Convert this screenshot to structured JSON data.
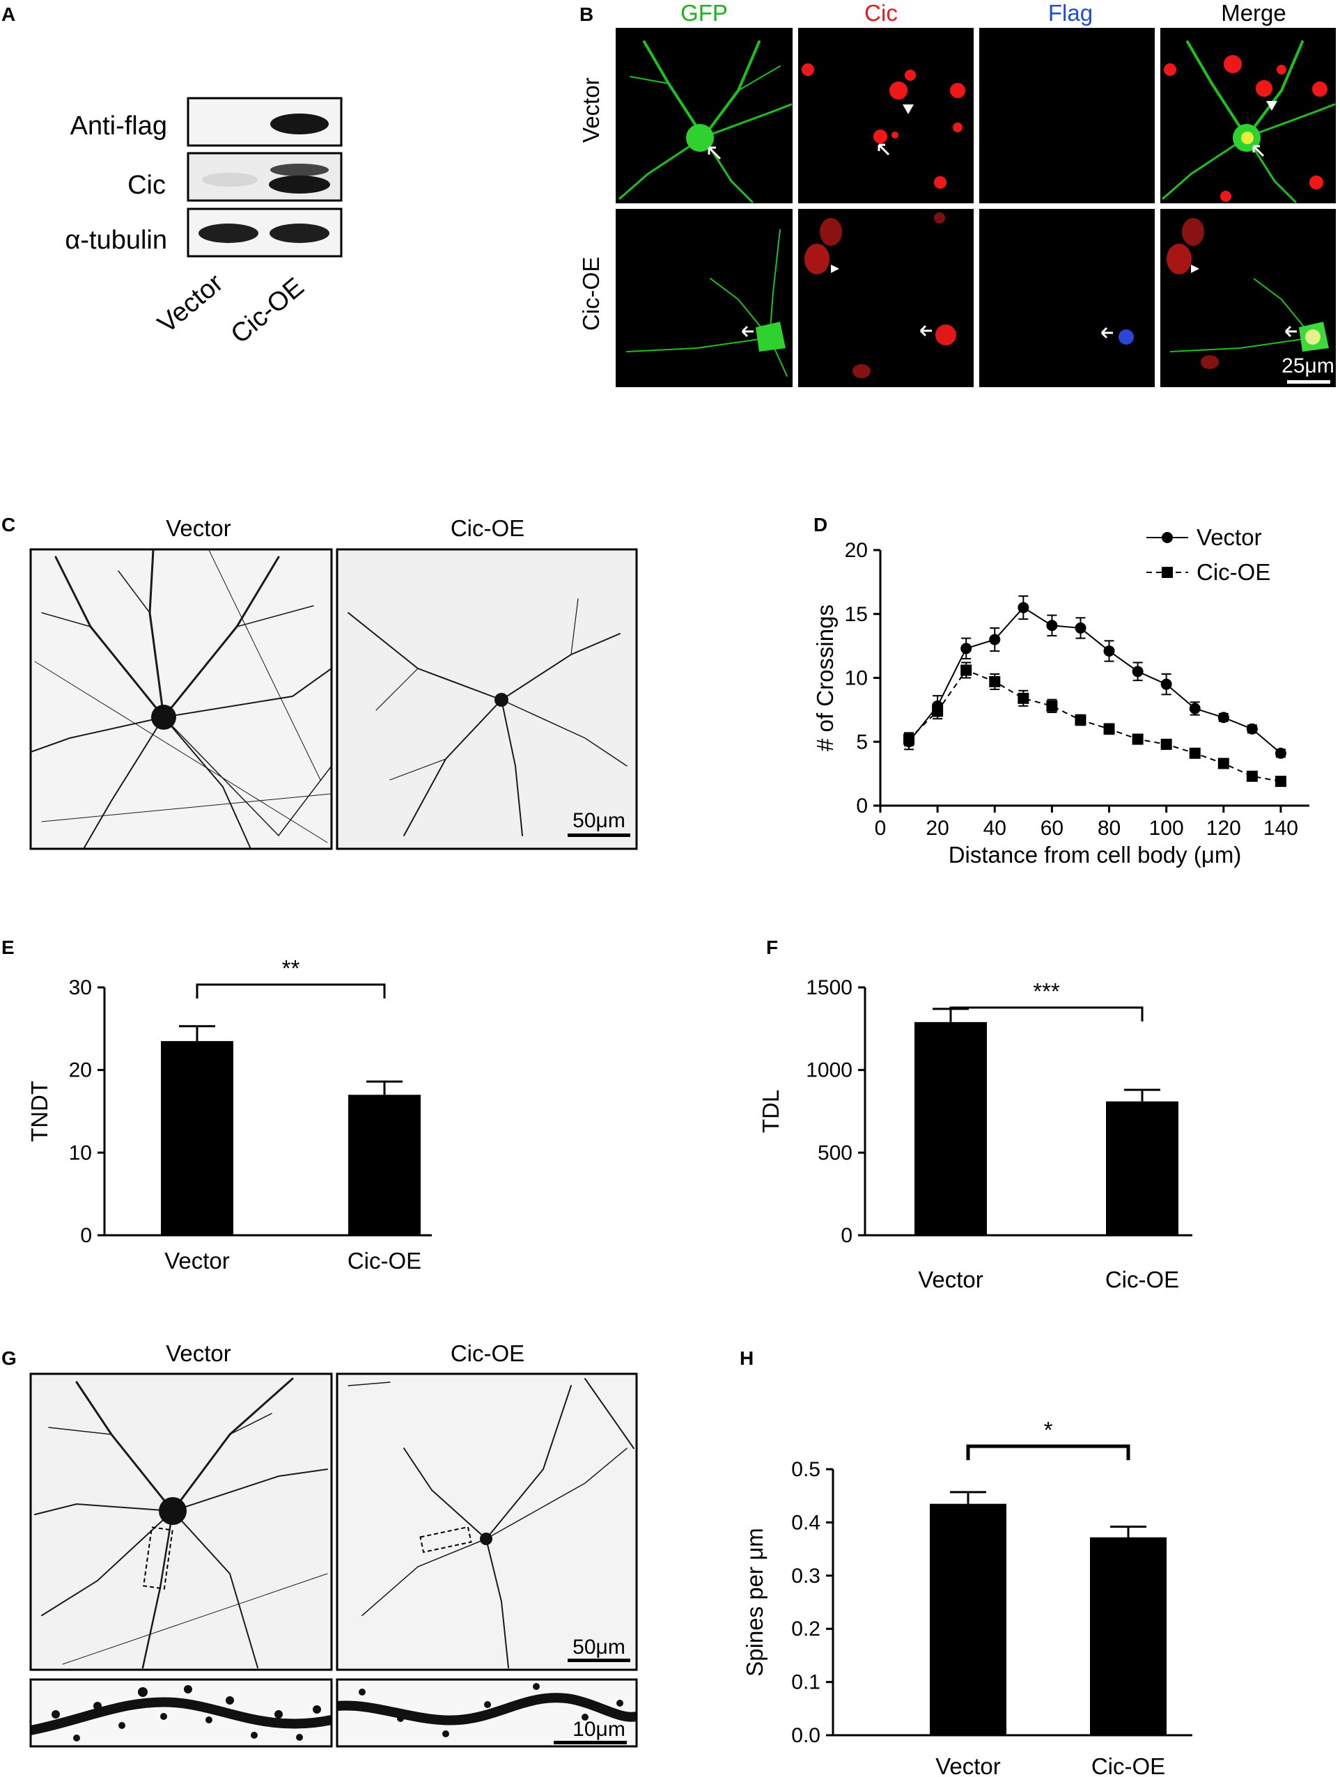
{
  "panels": {
    "A": {
      "label": "A",
      "rows": [
        "Anti-flag",
        "Cic",
        "α-tubulin"
      ],
      "lanes": [
        "Vector",
        "Cic-OE"
      ]
    },
    "B": {
      "label": "B",
      "columns": [
        {
          "name": "GFP",
          "color": "#1bb31b"
        },
        {
          "name": "Cic",
          "color": "#e01b1b"
        },
        {
          "name": "Flag",
          "color": "#1f4fd1"
        },
        {
          "name": "Merge",
          "color": "#000000"
        }
      ],
      "rows": [
        "Vector",
        "Cic-OE"
      ],
      "scalebar": "25μm"
    },
    "C": {
      "label": "C",
      "titles": [
        "Vector",
        "Cic-OE"
      ],
      "scalebar": "50μm"
    },
    "G": {
      "label": "G",
      "titles": [
        "Vector",
        "Cic-OE"
      ],
      "scalebar": "50μm",
      "scalebar_zoom": "10μm"
    }
  },
  "chart_data": [
    {
      "id": "D",
      "label": "D",
      "type": "line",
      "xlabel": "Distance from cell body (μm)",
      "ylabel": "# of Crossings",
      "xlim": [
        0,
        150
      ],
      "ylim": [
        0,
        20
      ],
      "xticks": [
        "0",
        "20",
        "40",
        "60",
        "80",
        "100",
        "120",
        "140"
      ],
      "yticks": [
        "0",
        "5",
        "10",
        "15",
        "20"
      ],
      "legend_position": "top-right",
      "series": [
        {
          "name": "Vector",
          "marker": "circle",
          "line": "solid",
          "x": [
            10,
            20,
            30,
            40,
            50,
            60,
            70,
            80,
            90,
            100,
            110,
            120,
            130,
            140
          ],
          "y": [
            5.0,
            7.8,
            12.3,
            13.0,
            15.5,
            14.1,
            13.9,
            12.1,
            10.5,
            9.5,
            7.6,
            6.9,
            6.0,
            4.1
          ],
          "err": [
            0.6,
            0.8,
            0.8,
            0.9,
            0.9,
            0.8,
            0.8,
            0.8,
            0.7,
            0.8,
            0.5,
            0.3,
            0.3,
            0.3
          ]
        },
        {
          "name": "Cic-OE",
          "marker": "square",
          "line": "dashed",
          "x": [
            10,
            20,
            30,
            40,
            50,
            60,
            70,
            80,
            90,
            100,
            110,
            120,
            130,
            140
          ],
          "y": [
            5.2,
            7.4,
            10.6,
            9.7,
            8.4,
            7.8,
            6.7,
            6.0,
            5.2,
            4.8,
            4.1,
            3.3,
            2.3,
            1.9
          ],
          "err": [
            0.5,
            0.6,
            0.6,
            0.6,
            0.6,
            0.5,
            0.4,
            0.4,
            0.3,
            0.3,
            0.3,
            0.2,
            0.2,
            0.2
          ]
        }
      ]
    },
    {
      "id": "E",
      "label": "E",
      "type": "bar",
      "ylabel": "TNDT",
      "categories": [
        "Vector",
        "Cic-OE"
      ],
      "values": [
        23.5,
        17.0
      ],
      "err": [
        1.8,
        1.6
      ],
      "ylim": [
        0,
        30
      ],
      "yticks": [
        "0",
        "10",
        "20",
        "30"
      ],
      "significance": "**"
    },
    {
      "id": "F",
      "label": "F",
      "type": "bar",
      "ylabel": "TDL",
      "categories": [
        "Vector",
        "Cic-OE"
      ],
      "values": [
        1290,
        810
      ],
      "err": [
        80,
        70
      ],
      "ylim": [
        0,
        1500
      ],
      "yticks": [
        "0",
        "500",
        "1000",
        "1500"
      ],
      "significance": "***"
    },
    {
      "id": "H",
      "label": "H",
      "type": "bar",
      "ylabel": "Spines per μm",
      "categories": [
        "Vector",
        "Cic-OE"
      ],
      "values": [
        0.435,
        0.372
      ],
      "err": [
        0.022,
        0.02
      ],
      "ylim": [
        0,
        0.5
      ],
      "yticks": [
        "0.0",
        "0.1",
        "0.2",
        "0.3",
        "0.4",
        "0.5"
      ],
      "significance": "*"
    }
  ]
}
